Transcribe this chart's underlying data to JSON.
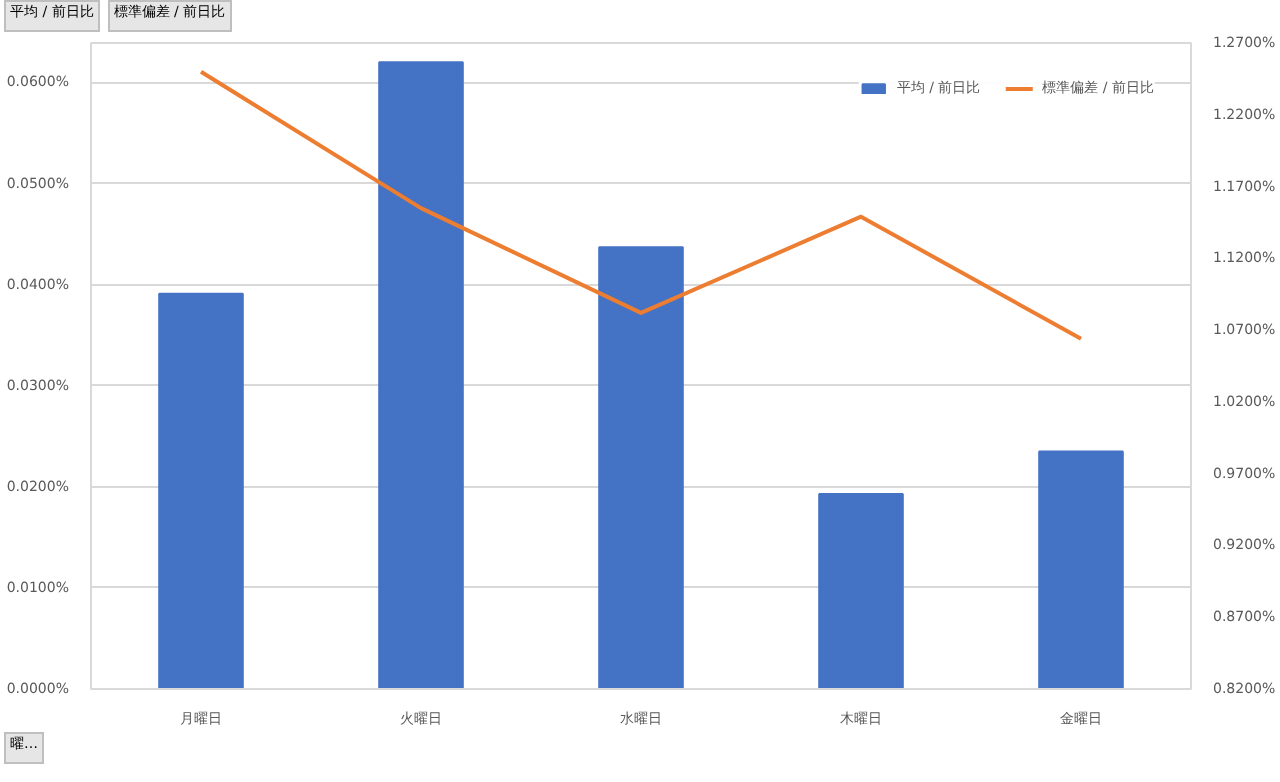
{
  "chart_data": {
    "type": "bar",
    "categories": [
      "月曜日",
      "火曜日",
      "水曜日",
      "木曜日",
      "金曜日"
    ],
    "series": [
      {
        "name": "平均 / 前日比",
        "color": "#4472c4",
        "values": [
          0.0391,
          0.062,
          0.0437,
          0.0193,
          0.0235
        ]
      },
      {
        "name": "標準偏差 / 前日比",
        "color": "#ed7d31",
        "type": "line",
        "axis": "y2",
        "values": [
          1.25,
          1.155,
          1.082,
          1.149,
          1.064
        ]
      }
    ],
    "ylim": [
      0,
      0.0639
    ],
    "yticks": [
      {
        "value": 0,
        "label": "0.0000%"
      },
      {
        "value": 0.01,
        "label": "0.0100%"
      },
      {
        "value": 0.02,
        "label": "0.0200%"
      },
      {
        "value": 0.03,
        "label": "0.0300%"
      },
      {
        "value": 0.04,
        "label": "0.0400%"
      },
      {
        "value": 0.05,
        "label": "0.0500%"
      },
      {
        "value": 0.06,
        "label": "0.0600%"
      }
    ],
    "y2lim": [
      0.82,
      1.27
    ],
    "y2ticks": [
      {
        "value": 0.82,
        "label": "0.8200%"
      },
      {
        "value": 0.87,
        "label": "0.8700%"
      },
      {
        "value": 0.92,
        "label": "0.9200%"
      },
      {
        "value": 0.97,
        "label": "0.9700%"
      },
      {
        "value": 1.02,
        "label": "1.0200%"
      },
      {
        "value": 1.07,
        "label": "1.0700%"
      },
      {
        "value": 1.12,
        "label": "1.1200%"
      },
      {
        "value": 1.17,
        "label": "1.1700%"
      },
      {
        "value": 1.22,
        "label": "1.2200%"
      },
      {
        "value": 1.27,
        "label": "1.2700%"
      }
    ],
    "grid": "y",
    "legend": "top right",
    "marker": "none",
    "annotations": [
      "平均 / 前日比",
      "標準偏差 / 前日比",
      "曜…"
    ]
  }
}
